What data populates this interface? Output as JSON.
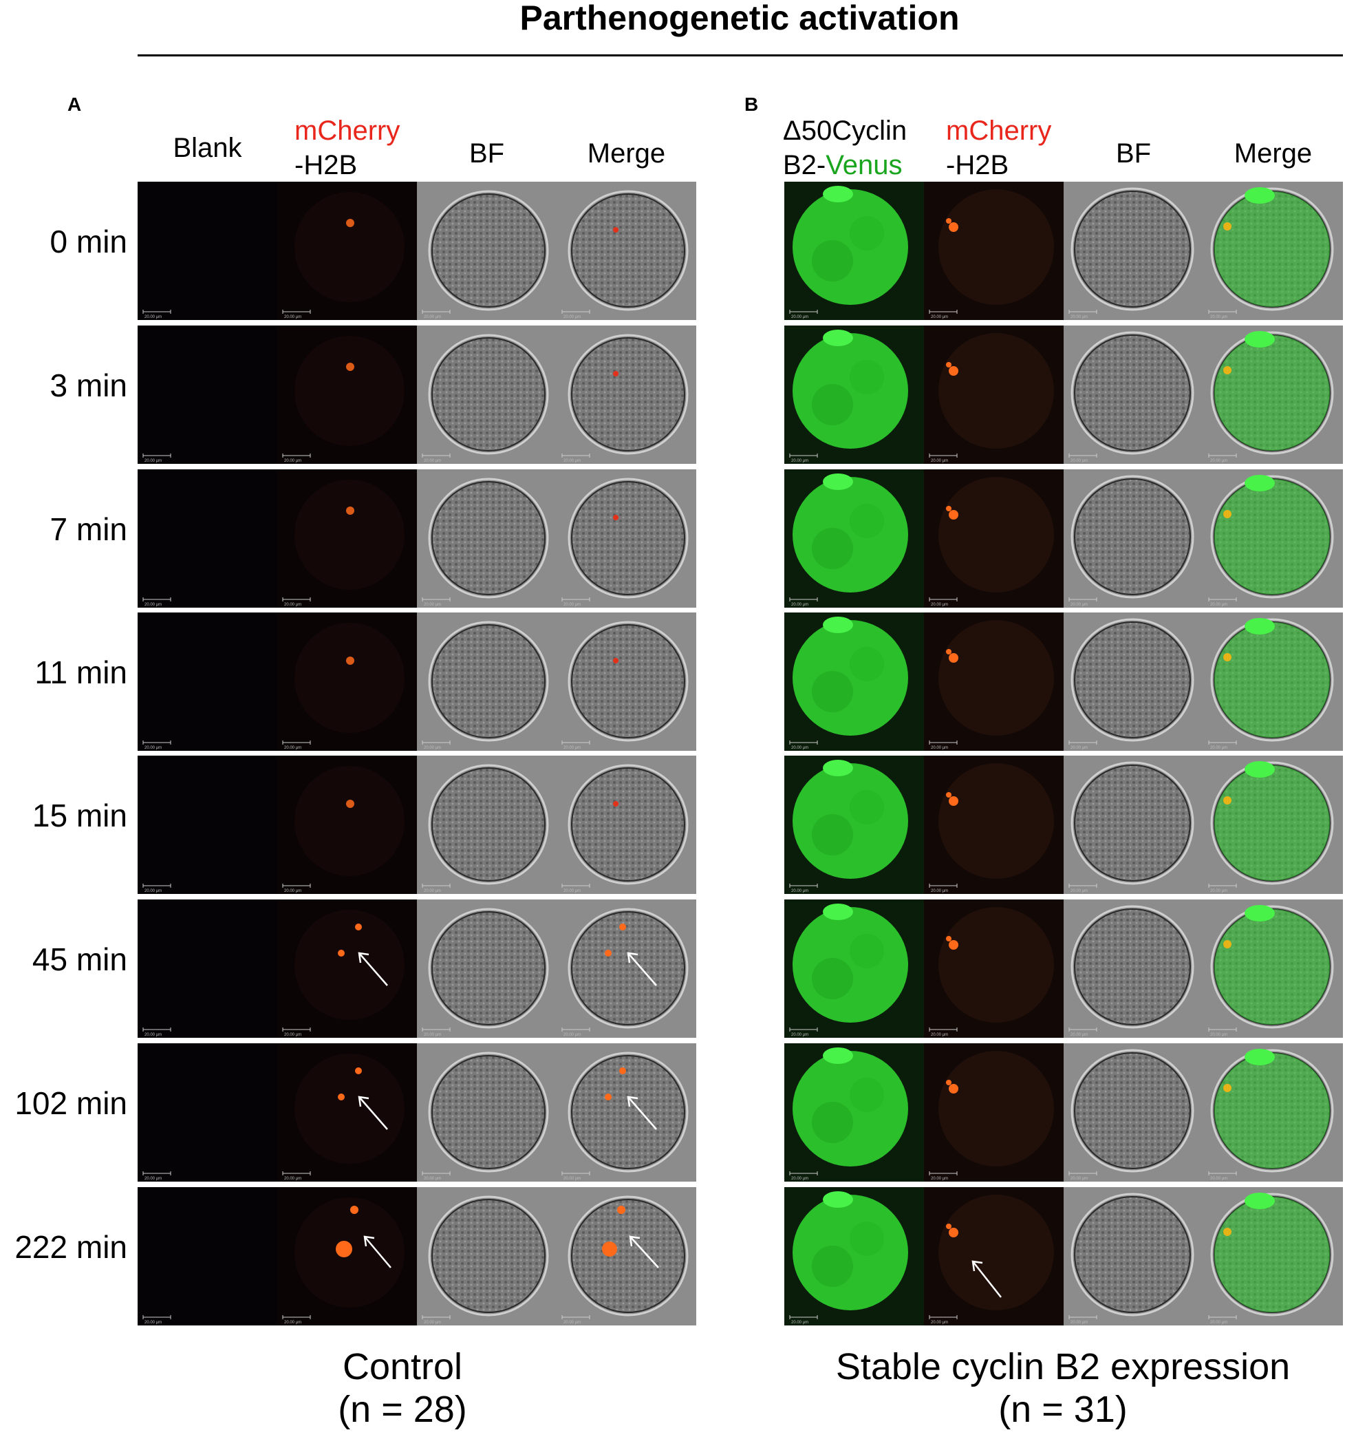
{
  "title": "Parthenogenetic activation",
  "panel_a": {
    "letter": "A",
    "columns": {
      "blank": "Blank",
      "mcherry_line1": "mCherry",
      "mcherry_line2": "-H2B",
      "bf": "BF",
      "merge": "Merge"
    },
    "footer_line1": "Control",
    "footer_line2": "(n = 28)"
  },
  "panel_b": {
    "letter": "B",
    "columns": {
      "venus_line1": "Δ50Cyclin",
      "venus_line2_prefix": "B2-",
      "venus_line2_colored": "Venus",
      "mcherry_line1": "mCherry",
      "mcherry_line2": "-H2B",
      "bf": "BF",
      "merge": "Merge"
    },
    "footer_line1": "Stable cyclin B2 expression",
    "footer_line2": "(n = 31)"
  },
  "timepoints": [
    "0 min",
    "3 min",
    "7 min",
    "11 min",
    "15 min",
    "45 min",
    "102 min",
    "222 min"
  ],
  "scale_bar_label": "20.00 µm",
  "colors": {
    "mcherry_label": "#e8261c",
    "venus_label": "#1aa51f",
    "mcherry_signal": "#ff6a1a",
    "venus_signal": "#2fd12f"
  }
}
